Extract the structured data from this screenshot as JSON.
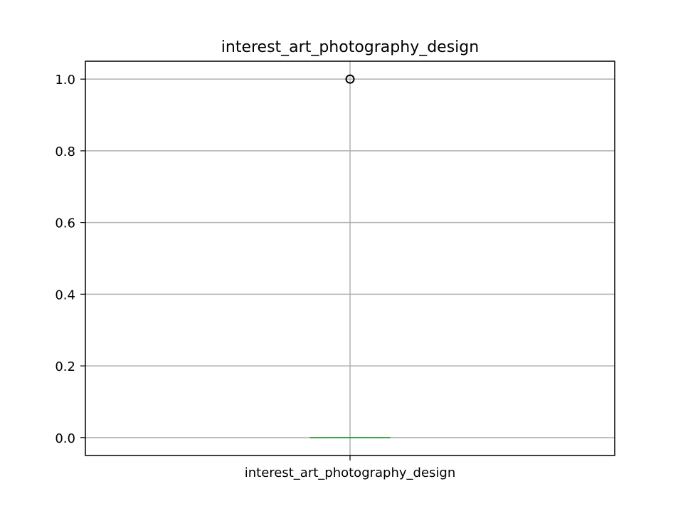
{
  "chart_data": {
    "type": "box",
    "title": "interest_art_photography_design",
    "categories": [
      "interest_art_photography_design"
    ],
    "boxes": [
      {
        "category": "interest_art_photography_design",
        "min": 0.0,
        "q1": 0.0,
        "median": 0.0,
        "q3": 0.0,
        "max": 0.0,
        "outliers": [
          1.0
        ]
      }
    ],
    "ylim": [
      -0.05,
      1.05
    ],
    "yticks": [
      0.0,
      0.2,
      0.4,
      0.6,
      0.8,
      1.0
    ],
    "ytick_labels": [
      "0.0",
      "0.2",
      "0.4",
      "0.6",
      "0.8",
      "1.0"
    ],
    "xlabel": "",
    "ylabel": "",
    "grid": true,
    "colors": {
      "box": "#1f77b4",
      "median": "#2ca02c",
      "grid": "#b0b0b0",
      "outlier": "#000000",
      "axes": "#000000"
    }
  }
}
